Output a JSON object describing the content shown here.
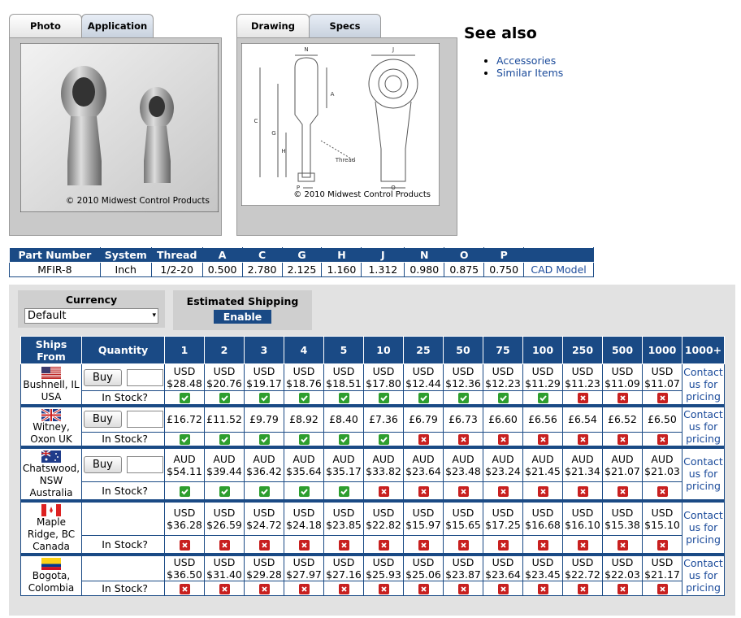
{
  "tabs_left": [
    "Photo",
    "Application"
  ],
  "photo_caption": "© 2010 Midwest Control Products",
  "tabs_right": [
    "Drawing",
    "Specs"
  ],
  "drawing": {
    "labels": [
      "N",
      "J",
      "A",
      "C",
      "G",
      "H",
      "Thread",
      "P",
      "O"
    ],
    "caption": "© 2010 Midwest Control Products"
  },
  "see_also": {
    "title": "See also",
    "links": [
      "Accessories",
      "Similar Items"
    ]
  },
  "spec_table": {
    "headers": [
      "Part Number",
      "System",
      "Thread",
      "A",
      "C",
      "G",
      "H",
      "J",
      "N",
      "O",
      "P",
      ""
    ],
    "row": [
      "MFIR-8",
      "Inch",
      "1/2-20",
      "0.500",
      "2.780",
      "2.125",
      "1.160",
      "1.312",
      "0.980",
      "0.875",
      "0.750",
      "CAD Model"
    ]
  },
  "currency": {
    "label": "Currency",
    "selected": "Default"
  },
  "shipping": {
    "label": "Estimated Shipping",
    "button": "Enable"
  },
  "pricing": {
    "ships_from": "Ships From",
    "quantity": "Quantity",
    "quantities": [
      "1",
      "2",
      "3",
      "4",
      "5",
      "10",
      "25",
      "50",
      "75",
      "100",
      "250",
      "500",
      "1000",
      "1000+"
    ],
    "rows": [
      {
        "location": "Bushnell, IL USA",
        "buy": "Buy",
        "currency": "USD",
        "prices": [
          "$28.48",
          "$20.76",
          "$19.17",
          "$18.76",
          "$18.51",
          "$17.80",
          "$12.44",
          "$12.36",
          "$12.23",
          "$11.29",
          "$11.23",
          "$11.09",
          "$11.07"
        ],
        "stock_label": "In Stock?",
        "in_stock": [
          true,
          true,
          true,
          true,
          true,
          true,
          true,
          true,
          true,
          true,
          false,
          false,
          false
        ],
        "contact": "Contact us for pricing"
      },
      {
        "location": "Witney, Oxon UK",
        "buy": "Buy",
        "prices": [
          "£16.72",
          "£11.52",
          "£9.79",
          "£8.92",
          "£8.40",
          "£7.36",
          "£6.79",
          "£6.73",
          "£6.60",
          "£6.56",
          "£6.54",
          "£6.52",
          "£6.50"
        ],
        "stock_label": "In Stock?",
        "in_stock": [
          true,
          true,
          true,
          true,
          true,
          true,
          false,
          false,
          false,
          false,
          false,
          false,
          false
        ],
        "contact": "Contact us for pricing"
      },
      {
        "location": "Chatswood, NSW Australia",
        "buy": "Buy",
        "currency": "AUD",
        "prices": [
          "$54.11",
          "$39.44",
          "$36.42",
          "$35.64",
          "$35.17",
          "$33.82",
          "$23.64",
          "$23.48",
          "$23.24",
          "$21.45",
          "$21.34",
          "$21.07",
          "$21.03"
        ],
        "stock_label": "In Stock?",
        "in_stock": [
          true,
          true,
          true,
          true,
          true,
          false,
          false,
          false,
          false,
          false,
          false,
          false,
          false
        ],
        "contact": "Contact us for pricing"
      },
      {
        "location": "Maple Ridge, BC Canada",
        "currency": "USD",
        "prices": [
          "$36.28",
          "$26.59",
          "$24.72",
          "$24.18",
          "$23.85",
          "$22.82",
          "$15.97",
          "$15.65",
          "$17.25",
          "$16.68",
          "$16.10",
          "$15.38",
          "$15.10"
        ],
        "stock_label": "In Stock?",
        "in_stock": [
          false,
          false,
          false,
          false,
          false,
          false,
          false,
          false,
          false,
          false,
          false,
          false,
          false
        ],
        "contact": "Contact us for pricing"
      },
      {
        "location": "Bogota, Colombia",
        "currency": "USD",
        "prices": [
          "$36.50",
          "$31.40",
          "$29.28",
          "$27.97",
          "$27.16",
          "$25.93",
          "$25.06",
          "$23.87",
          "$23.64",
          "$23.45",
          "$22.72",
          "$22.03",
          "$21.17"
        ],
        "stock_label": "In Stock?",
        "in_stock": [
          false,
          false,
          false,
          false,
          false,
          false,
          false,
          false,
          false,
          false,
          false,
          false,
          false
        ],
        "contact": "Contact us for pricing"
      }
    ]
  }
}
